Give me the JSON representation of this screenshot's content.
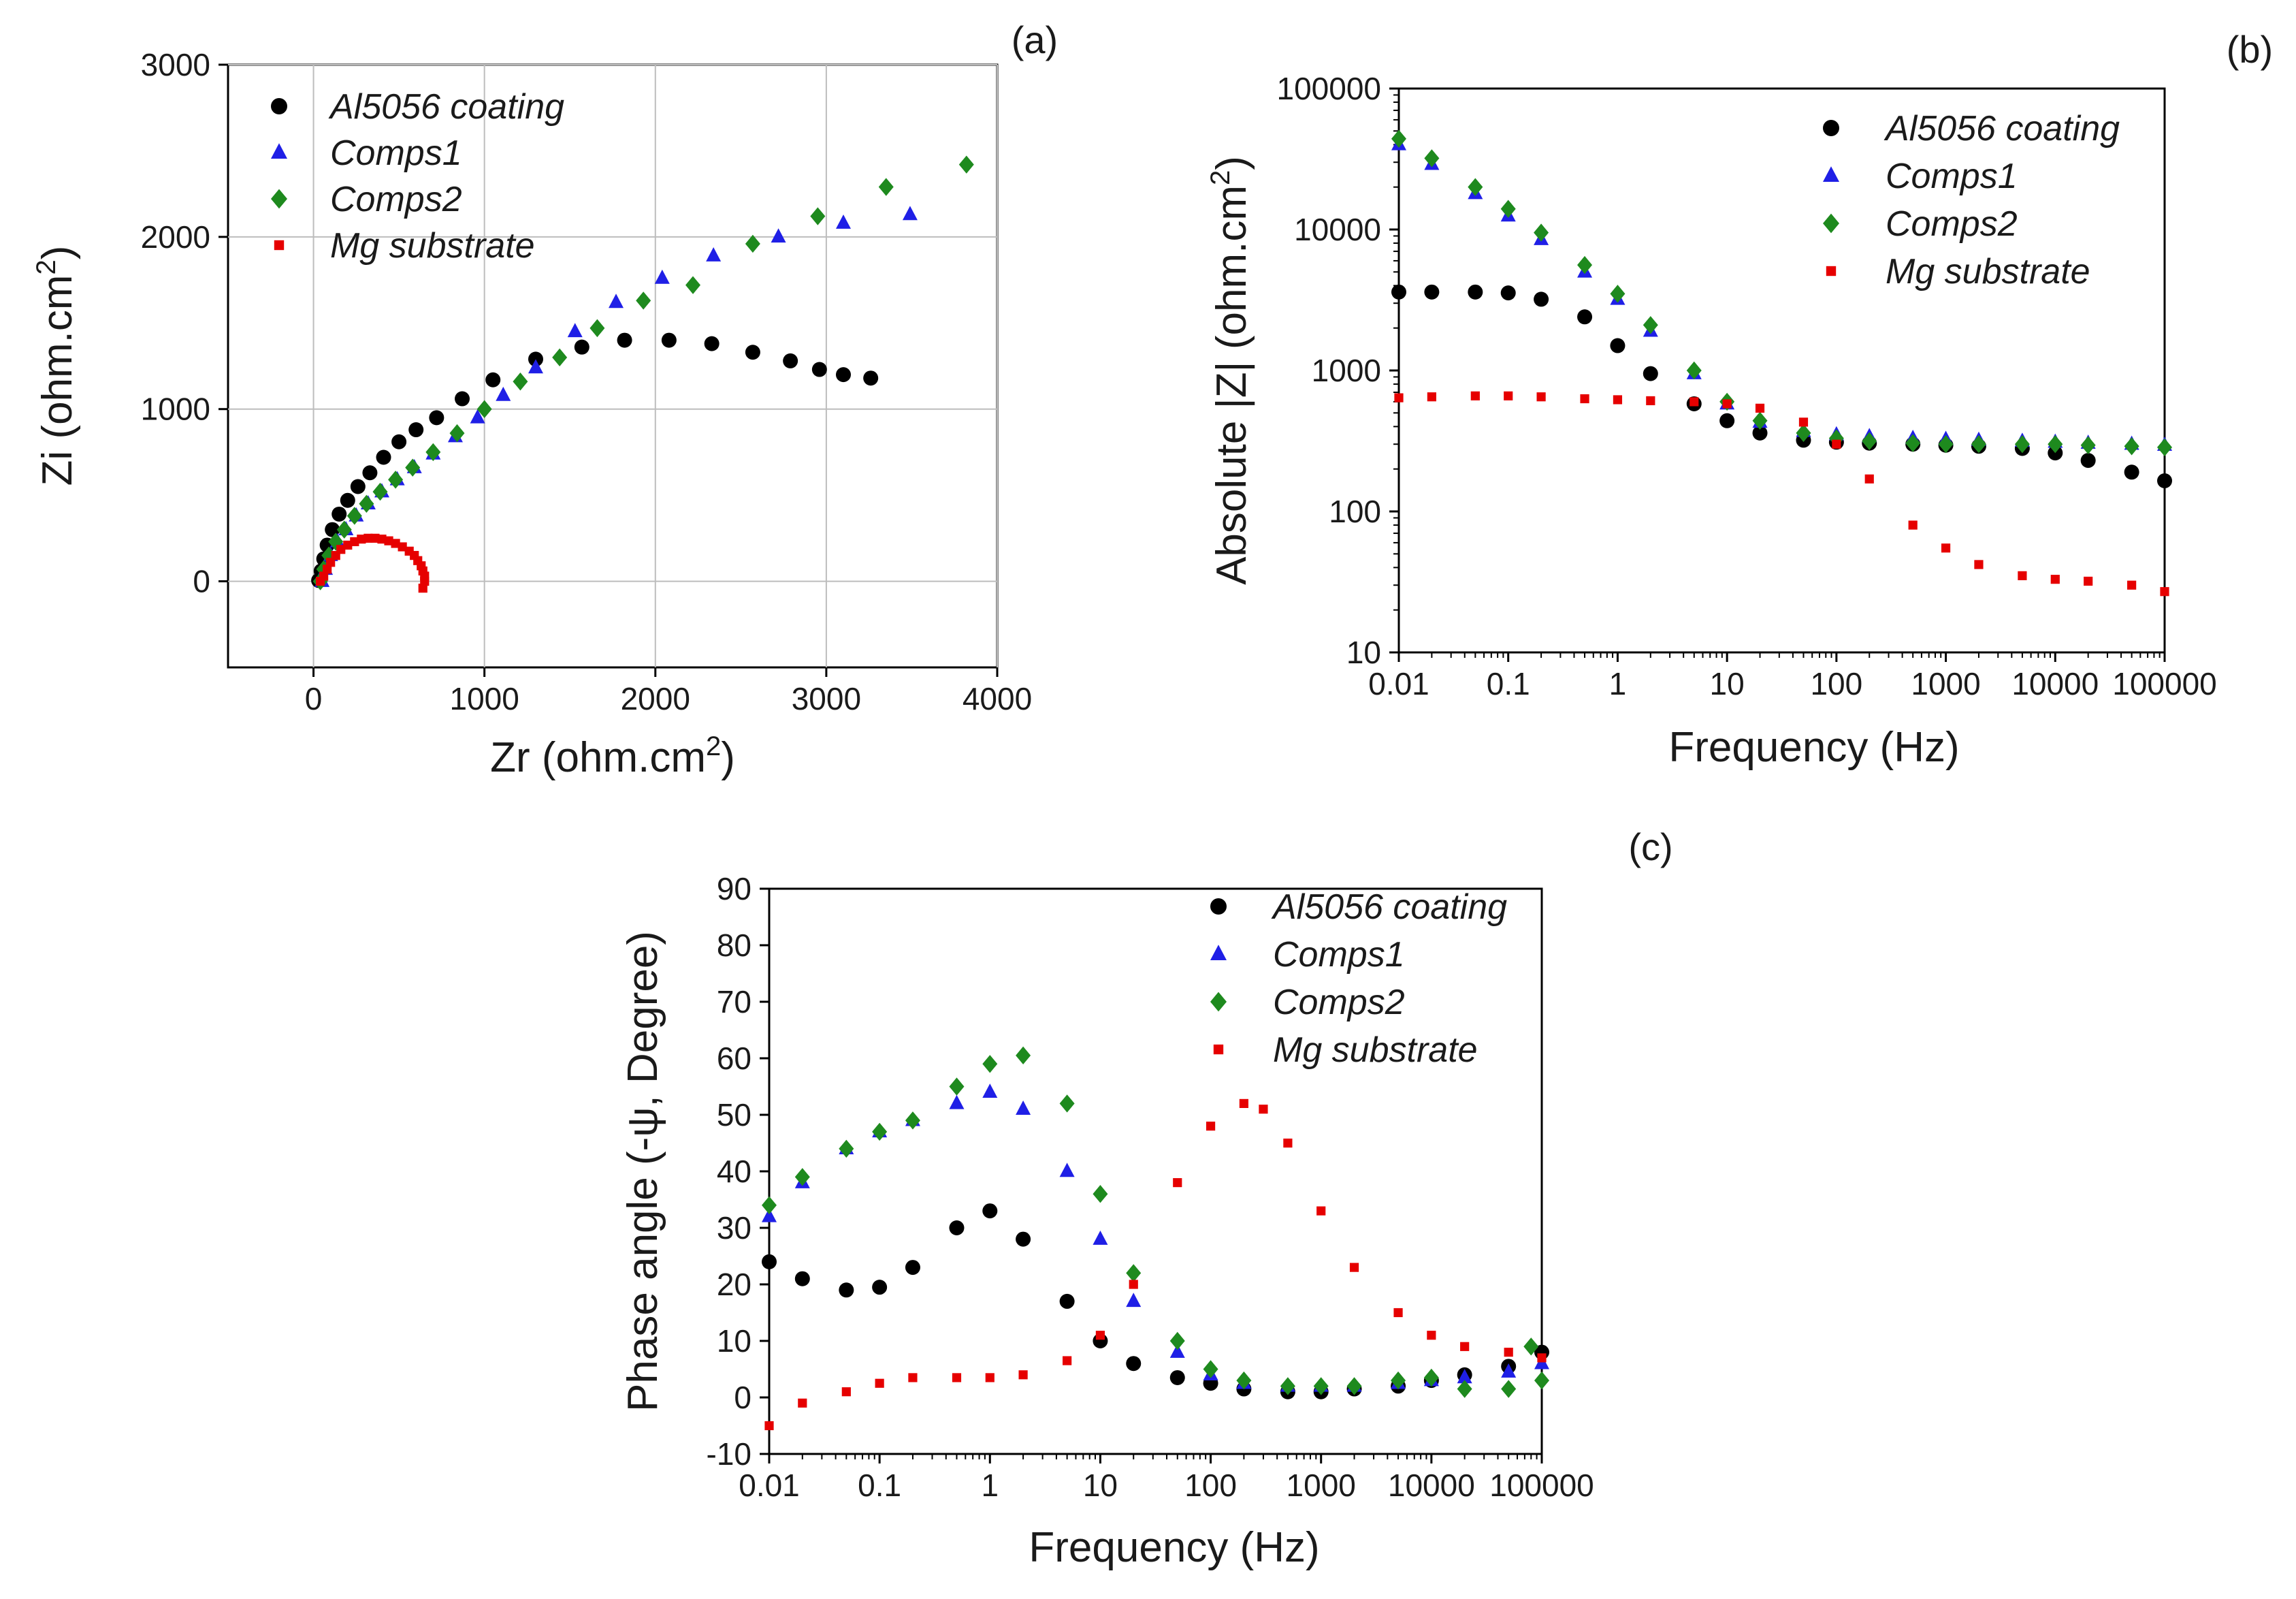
{
  "colors": {
    "Al5056 coating": "#000000",
    "Comps1": "#1f1fe6",
    "Comps2": "#1e8a1e",
    "Mg substrate": "#e60000"
  },
  "chart_data": [
    {
      "panel": "(a)",
      "type": "scatter",
      "title": "",
      "xlabel": "Zr (ohm.cm",
      "xlabel_sup": "2",
      "xlabel_end": ")",
      "ylabel": "Zi (ohm.cm",
      "ylabel_sup": "2",
      "ylabel_end": ")",
      "xlim": [
        -500,
        4000
      ],
      "ylim": [
        -500,
        3000
      ],
      "xticks": [
        "0",
        "1000",
        "2000",
        "3000",
        "4000"
      ],
      "yticks": [
        "0",
        "1000",
        "2000",
        "3000"
      ],
      "grid": true,
      "legend": [
        "Al5056 coating",
        "Comps1",
        "Comps2",
        "Mg substrate"
      ],
      "series": [
        {
          "name": "Al5056 coating",
          "marker": "circle",
          "x": [
            30,
            45,
            60,
            80,
            110,
            150,
            200,
            260,
            330,
            410,
            500,
            600,
            720,
            870,
            1050,
            1300,
            1570,
            1820,
            2080,
            2330,
            2570,
            2790,
            2960,
            3100,
            3260
          ],
          "y": [
            5,
            60,
            130,
            210,
            300,
            390,
            470,
            550,
            630,
            720,
            810,
            880,
            950,
            1060,
            1170,
            1290,
            1360,
            1400,
            1400,
            1380,
            1330,
            1280,
            1230,
            1200,
            1180
          ]
        },
        {
          "name": "Comps1",
          "marker": "triangle",
          "x": [
            50,
            70,
            100,
            140,
            190,
            250,
            320,
            400,
            490,
            590,
            700,
            830,
            960,
            1110,
            1300,
            1530,
            1770,
            2040,
            2340,
            2720,
            3100,
            3490
          ],
          "y": [
            0,
            70,
            150,
            230,
            300,
            380,
            450,
            520,
            590,
            660,
            740,
            840,
            950,
            1080,
            1240,
            1450,
            1620,
            1760,
            1890,
            2000,
            2080,
            2130
          ]
        },
        {
          "name": "Comps2",
          "marker": "diamond",
          "x": [
            40,
            60,
            90,
            130,
            180,
            240,
            310,
            390,
            480,
            580,
            700,
            840,
            1000,
            1210,
            1440,
            1660,
            1930,
            2220,
            2570,
            2950,
            3350,
            3820
          ],
          "y": [
            0,
            70,
            150,
            230,
            300,
            380,
            450,
            520,
            590,
            660,
            750,
            860,
            1000,
            1160,
            1300,
            1470,
            1630,
            1720,
            1960,
            2120,
            2290,
            2420
          ]
        },
        {
          "name": "Mg substrate",
          "marker": "square",
          "x": [
            40,
            60,
            80,
            100,
            130,
            160,
            200,
            240,
            280,
            320,
            360,
            400,
            440,
            480,
            520,
            560,
            590,
            610,
            630,
            640,
            650,
            650,
            640
          ],
          "y": [
            0,
            30,
            70,
            110,
            150,
            185,
            210,
            230,
            245,
            250,
            250,
            245,
            235,
            220,
            200,
            175,
            150,
            120,
            90,
            60,
            30,
            0,
            -40
          ]
        }
      ]
    },
    {
      "panel": "(b)",
      "type": "scatter",
      "title": "",
      "xlabel": "Frequency (Hz)",
      "ylabel": "Absolute |Z| (ohm.cm",
      "ylabel_sup": "2",
      "ylabel_end": ")",
      "xscale": "log",
      "yscale": "log",
      "xlim": [
        0.01,
        100000
      ],
      "ylim": [
        10,
        100000
      ],
      "xticks": [
        "0.01",
        "0.1",
        "1",
        "10",
        "100",
        "1000",
        "10000",
        "100000"
      ],
      "yticks": [
        "10",
        "100",
        "1000",
        "10000",
        "100000"
      ],
      "grid": false,
      "legend": [
        "Al5056 coating",
        "Comps1",
        "Comps2",
        "Mg substrate"
      ],
      "series": [
        {
          "name": "Al5056 coating",
          "marker": "circle",
          "x": [
            0.01,
            0.02,
            0.05,
            0.1,
            0.2,
            0.5,
            1,
            2,
            5,
            10,
            20,
            50,
            100,
            200,
            500,
            1000,
            2000,
            5000,
            10000,
            20000,
            50000,
            100000
          ],
          "y": [
            3600,
            3600,
            3600,
            3550,
            3200,
            2400,
            1500,
            950,
            580,
            440,
            360,
            320,
            310,
            305,
            300,
            295,
            290,
            280,
            260,
            230,
            190,
            165
          ]
        },
        {
          "name": "Comps1",
          "marker": "triangle",
          "x": [
            0.01,
            0.02,
            0.05,
            0.1,
            0.2,
            0.5,
            1,
            2,
            5,
            10,
            20,
            50,
            100,
            200,
            500,
            1000,
            2000,
            5000,
            10000,
            20000,
            50000,
            100000
          ],
          "y": [
            40000,
            29000,
            18000,
            12500,
            8500,
            5000,
            3200,
            1900,
            950,
            580,
            430,
            370,
            350,
            340,
            330,
            325,
            320,
            315,
            310,
            305,
            300,
            295
          ]
        },
        {
          "name": "Comps2",
          "marker": "diamond",
          "x": [
            0.01,
            0.02,
            0.05,
            0.1,
            0.2,
            0.5,
            1,
            2,
            5,
            10,
            20,
            50,
            100,
            200,
            500,
            1000,
            2000,
            5000,
            10000,
            20000,
            50000,
            100000
          ],
          "y": [
            44000,
            32000,
            20000,
            14000,
            9500,
            5600,
            3500,
            2100,
            1000,
            600,
            440,
            360,
            330,
            315,
            305,
            300,
            300,
            300,
            300,
            295,
            290,
            285
          ]
        },
        {
          "name": "Mg substrate",
          "marker": "square",
          "x": [
            0.01,
            0.02,
            0.05,
            0.1,
            0.2,
            0.5,
            1,
            2,
            5,
            10,
            20,
            50,
            100,
            200,
            500,
            1000,
            2000,
            5000,
            10000,
            20000,
            50000,
            100000
          ],
          "y": [
            640,
            650,
            660,
            660,
            650,
            630,
            620,
            610,
            600,
            580,
            540,
            430,
            300,
            170,
            80,
            55,
            42,
            35,
            33,
            32,
            30,
            27
          ]
        }
      ]
    },
    {
      "panel": "(c)",
      "type": "scatter",
      "title": "",
      "xlabel": "Frequency (Hz)",
      "ylabel": "Phase angle (-ψ, Degree)",
      "xscale": "log",
      "xlim": [
        0.01,
        100000
      ],
      "ylim": [
        -10,
        90
      ],
      "xticks": [
        "0.01",
        "0.1",
        "1",
        "10",
        "100",
        "1000",
        "10000",
        "100000"
      ],
      "yticks": [
        "-10",
        "0",
        "10",
        "20",
        "30",
        "40",
        "50",
        "60",
        "70",
        "80",
        "90"
      ],
      "grid": false,
      "legend": [
        "Al5056 coating",
        "Comps1",
        "Comps2",
        "Mg substrate"
      ],
      "series": [
        {
          "name": "Al5056 coating",
          "marker": "circle",
          "x": [
            0.01,
            0.02,
            0.05,
            0.1,
            0.2,
            0.5,
            1,
            2,
            5,
            10,
            20,
            50,
            100,
            200,
            500,
            1000,
            2000,
            5000,
            10000,
            20000,
            50000,
            100000
          ],
          "y": [
            24,
            21,
            19,
            19.5,
            23,
            30,
            33,
            28,
            17,
            10,
            6,
            3.5,
            2.5,
            1.5,
            1,
            1,
            1.5,
            2,
            3,
            4,
            5.5,
            8
          ]
        },
        {
          "name": "Comps1",
          "marker": "triangle",
          "x": [
            0.01,
            0.02,
            0.05,
            0.1,
            0.2,
            0.5,
            1,
            2,
            5,
            10,
            20,
            50,
            100,
            200,
            500,
            1000,
            2000,
            5000,
            10000,
            20000,
            50000,
            100000
          ],
          "y": [
            32,
            38,
            44,
            47,
            49,
            52,
            54,
            51,
            40,
            28,
            17,
            8,
            4,
            2.5,
            2,
            2,
            2,
            2.5,
            3,
            3.5,
            4.5,
            6
          ]
        },
        {
          "name": "Comps2",
          "marker": "diamond",
          "x": [
            0.01,
            0.02,
            0.05,
            0.1,
            0.2,
            0.5,
            1,
            2,
            5,
            10,
            20,
            50,
            100,
            200,
            500,
            1000,
            2000,
            5000,
            10000,
            20000,
            50000,
            80000,
            100000
          ],
          "y": [
            34,
            39,
            44,
            47,
            49,
            55,
            59,
            60.5,
            52,
            36,
            22,
            10,
            5,
            3,
            2,
            2,
            2,
            3,
            3.5,
            1.5,
            1.5,
            9,
            3
          ]
        },
        {
          "name": "Mg substrate",
          "marker": "square",
          "x": [
            0.01,
            0.02,
            0.05,
            0.1,
            0.2,
            0.5,
            1,
            2,
            5,
            10,
            20,
            50,
            100,
            200,
            300,
            500,
            1000,
            2000,
            5000,
            10000,
            20000,
            50000,
            100000
          ],
          "y": [
            -5,
            -1,
            1,
            2.5,
            3.5,
            3.5,
            3.5,
            4,
            6.5,
            11,
            20,
            38,
            48,
            52,
            51,
            45,
            33,
            23,
            15,
            11,
            9,
            8,
            7
          ]
        }
      ]
    }
  ]
}
